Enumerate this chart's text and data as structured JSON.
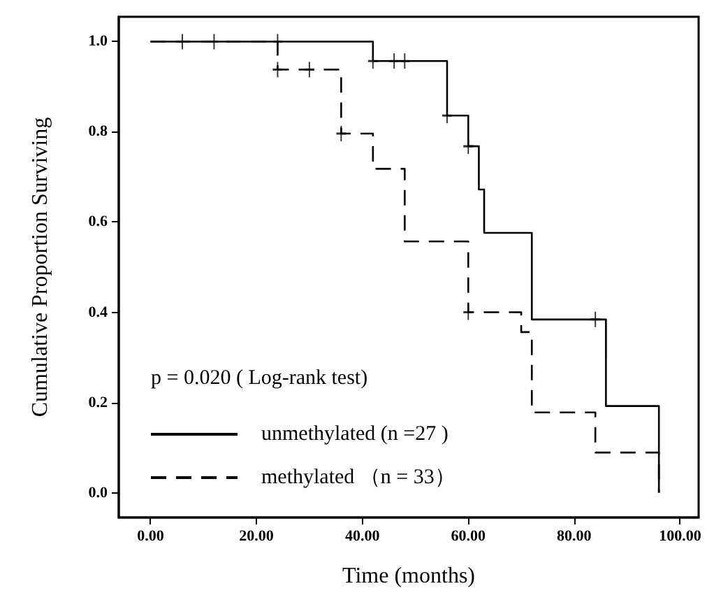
{
  "chart_data": {
    "type": "step",
    "xlabel": "Time (months)",
    "ylabel": "Cumulative Proportion Surviving",
    "annotations": [
      "p = 0.020 ( Log-rank test)"
    ],
    "series": [
      {
        "name": "unmethylated (n =27 )",
        "color": "#000000",
        "line_style": "solid",
        "x": [
          0,
          42,
          56,
          60,
          62,
          63,
          72,
          86,
          96
        ],
        "values": [
          1,
          0.957,
          0.836,
          0.768,
          0.672,
          0.576,
          0.384,
          0.192,
          0
        ]
      },
      {
        "name": "methylated （n = 33）",
        "color": "#000000",
        "line_style": "dashed",
        "x": [
          0,
          24,
          36,
          42,
          48,
          60,
          70,
          72,
          84,
          96
        ],
        "values": [
          1,
          0.938,
          0.796,
          0.718,
          0.557,
          0.4,
          0.356,
          0.178,
          0.089,
          0
        ]
      },
      {
        "type": "scatter",
        "marker": "cross",
        "color": "#000000",
        "x": [
          6,
          12,
          24,
          42,
          46,
          48,
          56,
          60,
          84
        ],
        "values": [
          1,
          1,
          1,
          0.957,
          0.957,
          0.957,
          0.836,
          0.768,
          0.384
        ]
      },
      {
        "type": "scatter",
        "marker": "cross",
        "color": "#000000",
        "x": [
          24,
          30,
          36,
          60
        ],
        "values": [
          0.938,
          0.938,
          0.796,
          0.4
        ]
      }
    ],
    "xlim": [
      -6,
      103.5
    ],
    "ylim": [
      -0.055,
      1.055
    ],
    "xticks": [
      {
        "value": 0,
        "label": "0.00"
      },
      {
        "value": 20,
        "label": "20.00"
      },
      {
        "value": 40,
        "label": "40.00"
      },
      {
        "value": 60,
        "label": "60.00"
      },
      {
        "value": 80,
        "label": "80.00"
      },
      {
        "value": 100,
        "label": "100.00"
      }
    ],
    "yticks": [
      {
        "value": 0,
        "label": "0.0"
      },
      {
        "value": 0.2,
        "label": "0.2"
      },
      {
        "value": 0.4,
        "label": "0.4"
      },
      {
        "value": 0.6,
        "label": "0.6"
      },
      {
        "value": 0.8,
        "label": "0.8"
      },
      {
        "value": 1,
        "label": "1.0"
      }
    ],
    "grid": false,
    "legend": "bottom left"
  }
}
